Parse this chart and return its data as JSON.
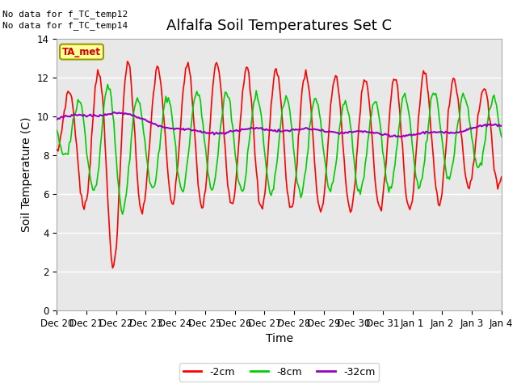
{
  "title": "Alfalfa Soil Temperatures Set C",
  "xlabel": "Time",
  "ylabel": "Soil Temperature (C)",
  "ylim": [
    0,
    14
  ],
  "yticks": [
    0,
    2,
    4,
    6,
    8,
    10,
    12,
    14
  ],
  "x_labels": [
    "Dec 20",
    "Dec 21",
    "Dec 22",
    "Dec 23",
    "Dec 24",
    "Dec 25",
    "Dec 26",
    "Dec 27",
    "Dec 28",
    "Dec 29",
    "Dec 30",
    "Dec 31",
    "Jan 1",
    "Jan 2",
    "Jan 3",
    "Jan 4"
  ],
  "color_2cm": "#ff0000",
  "color_8cm": "#00cc00",
  "color_32cm": "#9900bb",
  "color_ta_met_box": "#ffff99",
  "color_ta_met_border": "#999900",
  "color_ta_met_text": "#cc0000",
  "color_background": "#e8e8e8",
  "notes": [
    "No data for f_TC_temp12",
    "No data for f_TC_temp14"
  ],
  "ta_met_label": "TA_met",
  "legend_entries": [
    "-2cm",
    "-8cm",
    "-32cm"
  ],
  "title_fontsize": 13,
  "label_fontsize": 10,
  "tick_fontsize": 8.5,
  "note_fontsize": 8
}
